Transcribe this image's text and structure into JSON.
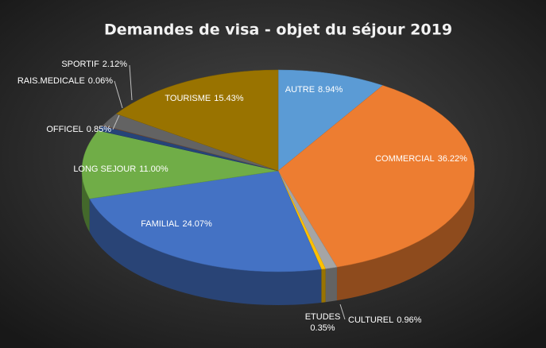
{
  "chart_data": {
    "type": "pie3d",
    "title": "Demandes de visa - objet du séjour 2019",
    "categories": [
      "AUTRE",
      "COMMERCIAL",
      "CULTUREL",
      "ETUDES",
      "FAMILIAL",
      "LONG SEJOUR",
      "OFFICEL",
      "RAIS.MEDICALE",
      "SPORTIF",
      "TOURISME"
    ],
    "values": [
      8.94,
      36.22,
      0.96,
      0.35,
      24.07,
      11.0,
      0.85,
      0.06,
      2.12,
      15.43
    ],
    "value_labels": [
      "8.94%",
      "36.22%",
      "0.96%",
      "0.35%",
      "24.07%",
      "11.00%",
      "0.85%",
      "0.06%",
      "2.12%",
      "15.43%"
    ],
    "colors": [
      "#5b9bd5",
      "#ed7d31",
      "#a5a5a5",
      "#ffc000",
      "#4472c4",
      "#70ad47",
      "#264478",
      "#9e480e",
      "#636363",
      "#997300"
    ]
  }
}
